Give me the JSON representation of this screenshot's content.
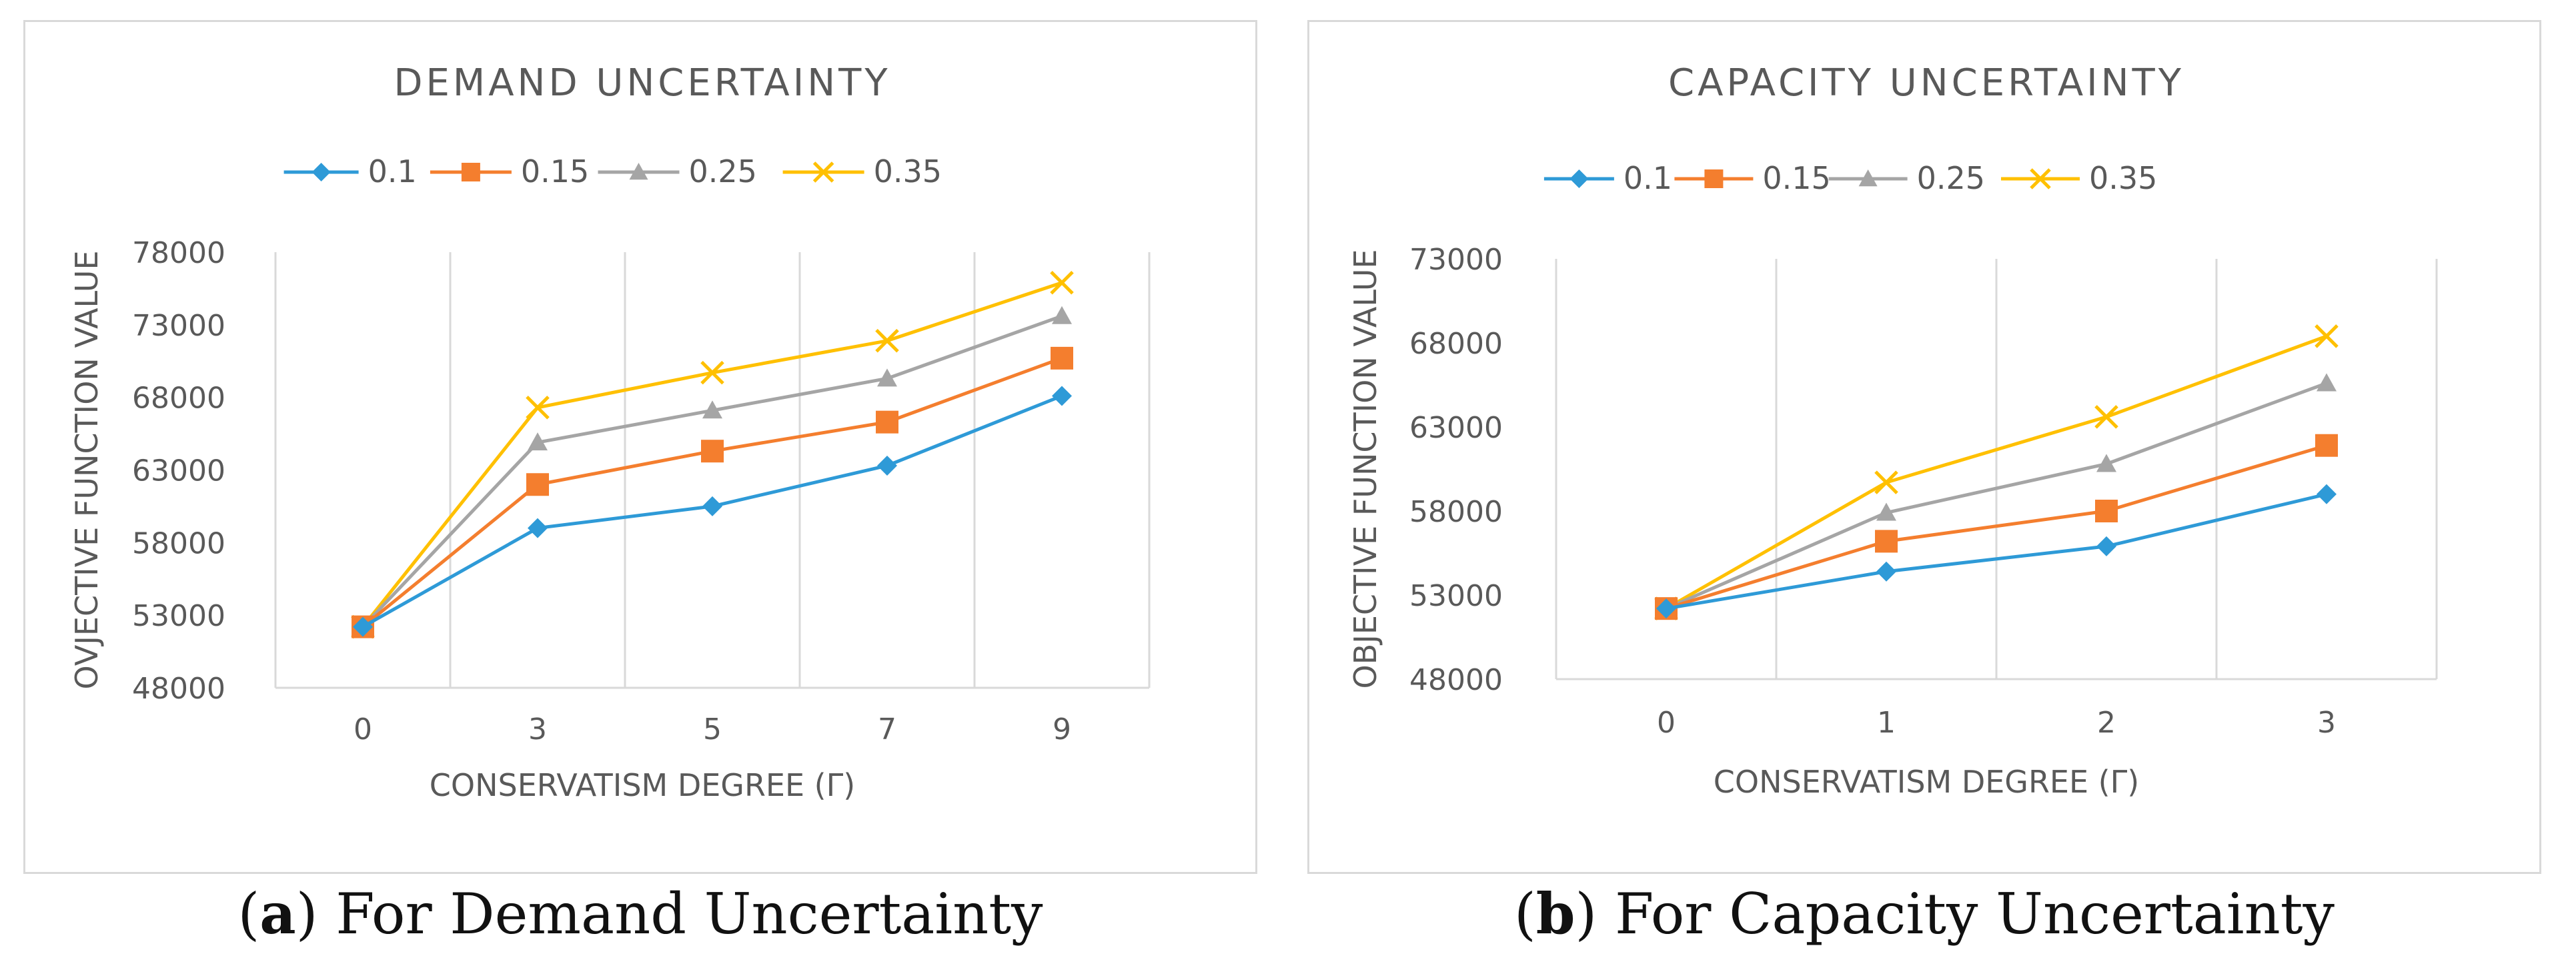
{
  "chart_data": [
    {
      "type": "line",
      "title": "DEMAND UNCERTAINTY",
      "xlabel": "CONSERVATISM DEGREE (Γ)",
      "ylabel": "OVJECTIVE FUNCTION VALUE",
      "categories": [
        "0",
        "3",
        "5",
        "7",
        "9"
      ],
      "ylim": [
        48000,
        78000
      ],
      "yticks": [
        "48000",
        "53000",
        "58000",
        "63000",
        "68000",
        "73000",
        "78000"
      ],
      "legend_position": "top",
      "series": [
        {
          "name": "0.1",
          "color": "#2e9ad7",
          "marker": "diamond",
          "values": [
            52200,
            59000,
            60500,
            63300,
            68100
          ]
        },
        {
          "name": "0.15",
          "color": "#f47e2e",
          "marker": "square",
          "values": [
            52200,
            62000,
            64300,
            66300,
            70700
          ]
        },
        {
          "name": "0.25",
          "color": "#a5a5a5",
          "marker": "triangle",
          "values": [
            52200,
            64900,
            67100,
            69300,
            73600
          ]
        },
        {
          "name": "0.35",
          "color": "#ffc000",
          "marker": "x",
          "values": [
            52200,
            67300,
            69700,
            71900,
            75900
          ]
        }
      ]
    },
    {
      "type": "line",
      "title": "CAPACITY UNCERTAINTY",
      "xlabel": "CONSERVATISM DEGREE (Γ)",
      "ylabel": "OBJECTIVE FUNCTION VALUE",
      "categories": [
        "0",
        "1",
        "2",
        "3"
      ],
      "ylim": [
        48000,
        73000
      ],
      "yticks": [
        "48000",
        "53000",
        "58000",
        "63000",
        "68000",
        "73000"
      ],
      "legend_position": "top",
      "series": [
        {
          "name": "0.1",
          "color": "#2e9ad7",
          "marker": "diamond",
          "values": [
            52200,
            54400,
            55900,
            59000
          ]
        },
        {
          "name": "0.15",
          "color": "#f47e2e",
          "marker": "square",
          "values": [
            52200,
            56200,
            58000,
            61900
          ]
        },
        {
          "name": "0.25",
          "color": "#a5a5a5",
          "marker": "triangle",
          "values": [
            52200,
            57900,
            60800,
            65600
          ]
        },
        {
          "name": "0.35",
          "color": "#ffc000",
          "marker": "x",
          "values": [
            52200,
            59700,
            63600,
            68400
          ]
        }
      ]
    }
  ],
  "captions": [
    {
      "letter": "a",
      "text": ") For Demand Uncertainty",
      "open": "("
    },
    {
      "letter": "b",
      "text": ") For Capacity Uncertainty",
      "open": "("
    }
  ]
}
